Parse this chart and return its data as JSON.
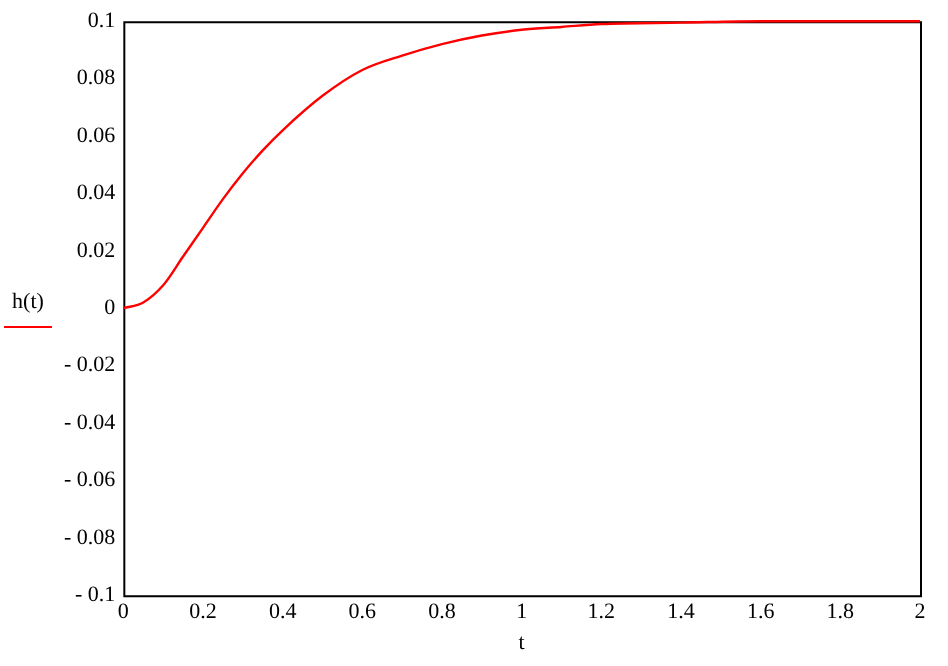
{
  "chart_data": {
    "type": "line",
    "xlabel": "t",
    "legend": "left",
    "grid": false,
    "x": [
      0,
      0.05,
      0.1,
      0.15,
      0.2,
      0.25,
      0.3,
      0.35,
      0.4,
      0.5,
      0.6,
      0.7,
      0.8,
      0.9,
      1.0,
      1.1,
      1.2,
      1.4,
      1.6,
      1.8,
      2
    ],
    "series": [
      {
        "name": "h(t)",
        "color": "#ff0000",
        "values": [
          0,
          0.002,
          0.008,
          0.018,
          0.028,
          0.038,
          0.047,
          0.055,
          0.062,
          0.074,
          0.083,
          0.088,
          0.092,
          0.095,
          0.097,
          0.098,
          0.099,
          0.0995,
          0.1,
          0.1,
          0.1
        ]
      }
    ],
    "xlim": [
      0,
      2
    ],
    "xticks": [
      0,
      0.2,
      0.4,
      0.6,
      0.8,
      1,
      1.2,
      1.4,
      1.6,
      1.8,
      2
    ],
    "ylim": [
      -0.1,
      0.1
    ],
    "yticks": [
      {
        "value": -0.1,
        "label": "- 0.1"
      },
      {
        "value": -0.08,
        "label": "- 0.08"
      },
      {
        "value": -0.06,
        "label": "- 0.06"
      },
      {
        "value": -0.04,
        "label": "- 0.04"
      },
      {
        "value": -0.02,
        "label": "- 0.02"
      },
      0,
      0.02,
      0.04,
      0.06,
      0.08,
      0.1
    ]
  }
}
